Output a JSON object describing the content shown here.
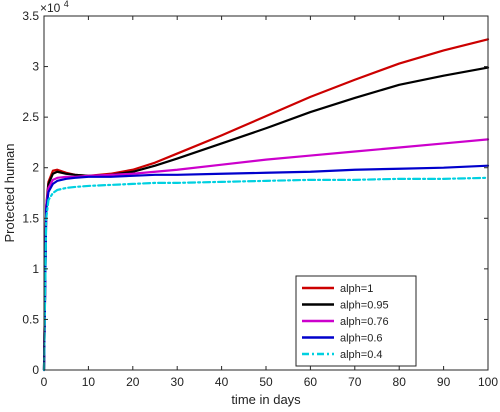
{
  "chart_data": {
    "type": "line",
    "title": "",
    "xlabel": "time in days",
    "ylabel": "Protected  human",
    "y_multiplier": {
      "base": "×10",
      "exponent": "4"
    },
    "xlim": [
      0,
      100
    ],
    "ylim": [
      0,
      35000
    ],
    "x_ticks": [
      0,
      10,
      20,
      30,
      40,
      50,
      60,
      70,
      80,
      90,
      100
    ],
    "y_ticks": [
      {
        "value": 0,
        "label": "0"
      },
      {
        "value": 5000,
        "label": "0.5"
      },
      {
        "value": 10000,
        "label": "1"
      },
      {
        "value": 15000,
        "label": "1.5"
      },
      {
        "value": 20000,
        "label": "2"
      },
      {
        "value": 25000,
        "label": "2.5"
      },
      {
        "value": 30000,
        "label": "3"
      },
      {
        "value": 35000,
        "label": "3.5"
      }
    ],
    "grid": false,
    "legend_position": "right",
    "x": [
      0,
      0.5,
      1,
      2,
      3,
      5,
      7,
      10,
      15,
      20,
      25,
      30,
      40,
      50,
      60,
      70,
      80,
      90,
      100
    ],
    "series": [
      {
        "name": "alph=1",
        "color": "#cc0000",
        "style": "solid",
        "values": [
          0,
          16200,
          18600,
          19700,
          19800,
          19500,
          19300,
          19200,
          19400,
          19800,
          20500,
          21400,
          23200,
          25100,
          27000,
          28700,
          30300,
          31600,
          32700
        ]
      },
      {
        "name": "alph=0.95",
        "color": "#000000",
        "style": "solid",
        "values": [
          0,
          16000,
          18400,
          19400,
          19600,
          19400,
          19300,
          19200,
          19300,
          19600,
          20200,
          20900,
          22400,
          23900,
          25500,
          26900,
          28200,
          29100,
          29900
        ]
      },
      {
        "name": "alph=0.76",
        "color": "#cc00cc",
        "style": "solid",
        "values": [
          0,
          16200,
          18000,
          18800,
          19000,
          19100,
          19100,
          19200,
          19300,
          19400,
          19600,
          19800,
          20300,
          20800,
          21200,
          21600,
          22000,
          22400,
          22800
        ]
      },
      {
        "name": "alph=0.6",
        "color": "#0000cc",
        "style": "solid",
        "values": [
          0,
          15800,
          17600,
          18400,
          18700,
          18900,
          19000,
          19100,
          19100,
          19200,
          19300,
          19300,
          19400,
          19500,
          19600,
          19800,
          19900,
          20000,
          20200
        ]
      },
      {
        "name": "alph=0.4",
        "color": "#00d0e0",
        "style": "dashdot",
        "values": [
          0,
          15000,
          16800,
          17500,
          17800,
          18000,
          18100,
          18200,
          18300,
          18400,
          18500,
          18500,
          18600,
          18700,
          18800,
          18800,
          18900,
          18900,
          19000
        ]
      }
    ]
  }
}
